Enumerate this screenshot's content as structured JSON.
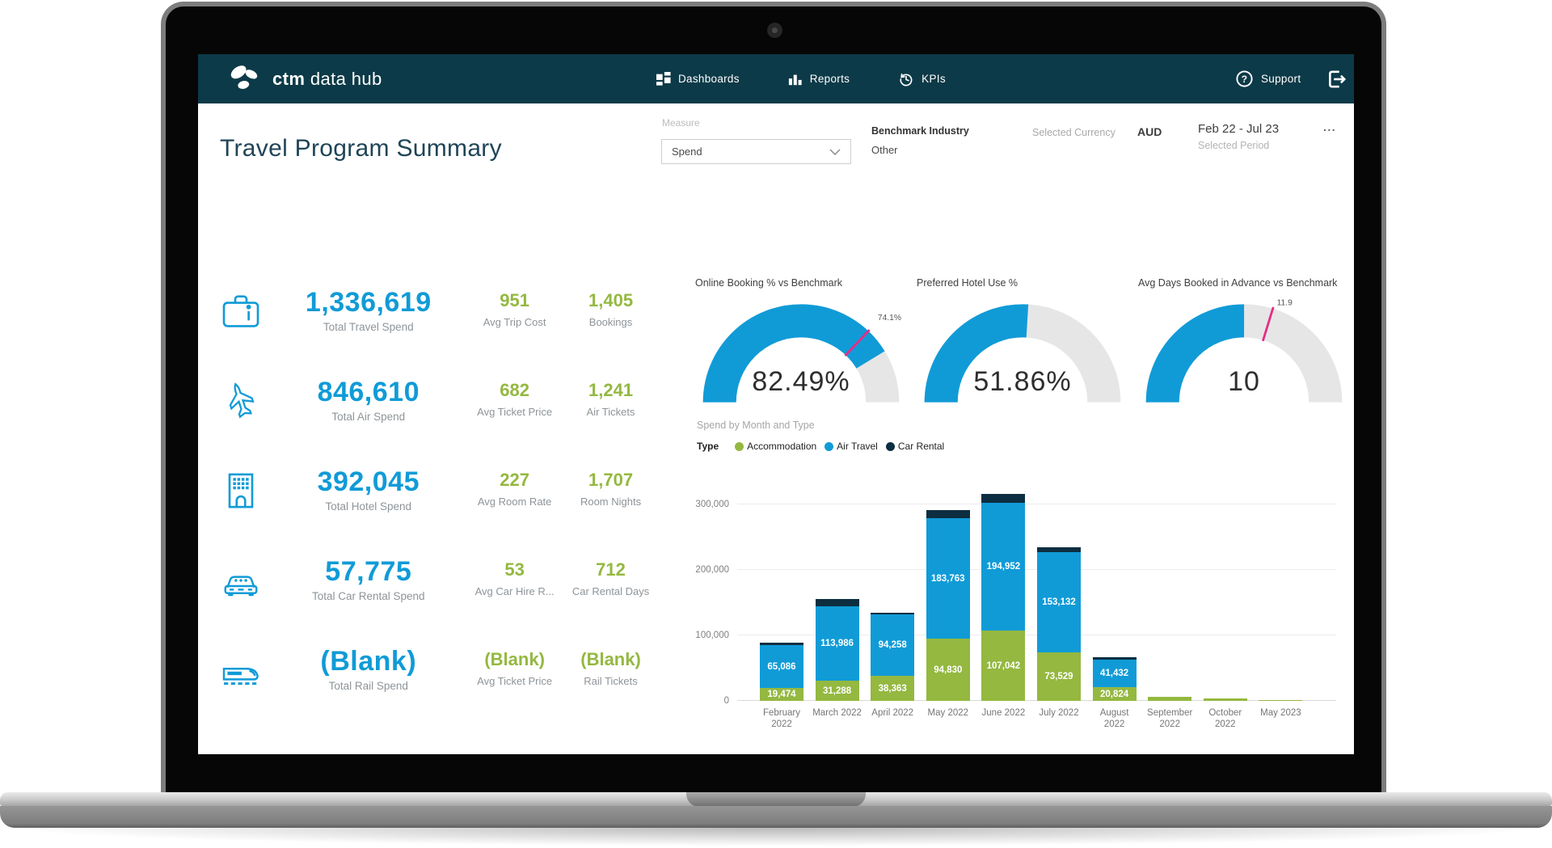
{
  "colors": {
    "navbar": "#0d3a48",
    "blue": "#109bd7",
    "green": "#94b840",
    "navy": "#0d2e40",
    "pink": "#e62d87",
    "gauge_track": "#e6e6e6",
    "title_teal": "#1f4557"
  },
  "brand": {
    "bold": "ctm",
    "light": "data hub"
  },
  "nav": {
    "items": [
      {
        "label": "Dashboards"
      },
      {
        "label": "Reports"
      },
      {
        "label": "KPIs"
      }
    ],
    "support": "Support"
  },
  "header": {
    "title": "Travel Program Summary",
    "measure_label": "Measure",
    "measure_value": "Spend",
    "benchmark_label": "Benchmark Industry",
    "benchmark_value": "Other",
    "currency_label": "Selected Currency",
    "currency_value": "AUD",
    "period_value": "Feb 22 - Jul 23",
    "period_label": "Selected Period",
    "more_options": "..."
  },
  "metrics": [
    {
      "value": "1,336,619",
      "label": "Total Travel Spend",
      "stat1": "951",
      "stat1_label": "Avg Trip Cost",
      "stat2": "1,405",
      "stat2_label": "Bookings"
    },
    {
      "value": "846,610",
      "label": "Total Air Spend",
      "stat1": "682",
      "stat1_label": "Avg Ticket Price",
      "stat2": "1,241",
      "stat2_label": "Air Tickets"
    },
    {
      "value": "392,045",
      "label": "Total Hotel Spend",
      "stat1": "227",
      "stat1_label": "Avg Room Rate",
      "stat2": "1,707",
      "stat2_label": "Room Nights"
    },
    {
      "value": "57,775",
      "label": "Total Car Rental Spend",
      "stat1": "53",
      "stat1_label": "Avg Car Hire R...",
      "stat2": "712",
      "stat2_label": "Car Rental Days"
    },
    {
      "value": "(Blank)",
      "label": "Total Rail Spend",
      "stat1": "(Blank)",
      "stat1_label": "Avg Ticket Price",
      "stat2": "(Blank)",
      "stat2_label": "Rail Tickets"
    }
  ],
  "gauges": [
    {
      "title": "Online Booking % vs Benchmark",
      "value_label": "82.49%",
      "value_pct": 82.49,
      "target_pct": 74.1,
      "target_label": "74.1%"
    },
    {
      "title": "Preferred Hotel Use %",
      "value_label": "51.86%",
      "value_pct": 51.86,
      "target_pct": null,
      "target_label": null
    },
    {
      "title": "Avg Days Booked in Advance vs Benchmark",
      "value_label": "10",
      "value_pct": 50.0,
      "target_pct": 59.5,
      "target_label": "11.9"
    }
  ],
  "chart_data": {
    "type": "bar",
    "stacked": true,
    "title": "Spend by Month and Type",
    "legend_title": "Type",
    "legend_position": "top",
    "grid": true,
    "categories": [
      "February\n2022",
      "March 2022",
      "April 2022",
      "May 2022",
      "June 2022",
      "July 2022",
      "August\n2022",
      "September\n2022",
      "October\n2022",
      "May 2023"
    ],
    "series": [
      {
        "name": "Accommodation",
        "color": "#94b840",
        "values": [
          19474,
          31288,
          38363,
          94830,
          107042,
          73529,
          20824,
          6000,
          3500,
          1000
        ]
      },
      {
        "name": "Air Travel",
        "color": "#109bd7",
        "values": [
          65086,
          113986,
          94258,
          183763,
          194952,
          153132,
          41432,
          0,
          0,
          0
        ]
      },
      {
        "name": "Car Rental",
        "color": "#0d2e40",
        "values": [
          4000,
          11000,
          3000,
          12500,
          13000,
          8000,
          3500,
          0,
          0,
          0
        ]
      }
    ],
    "labeled_values": [
      "19,474",
      "65,086",
      "31,288",
      "113,986",
      "38,363",
      "94,258",
      "94,830",
      "183,763",
      "107,042",
      "194,952",
      "73,529",
      "153,132",
      "20,824",
      "41,432"
    ],
    "y_ticks": [
      "0",
      "100,000",
      "200,000",
      "300,000"
    ],
    "ylim": [
      0,
      320000
    ]
  }
}
